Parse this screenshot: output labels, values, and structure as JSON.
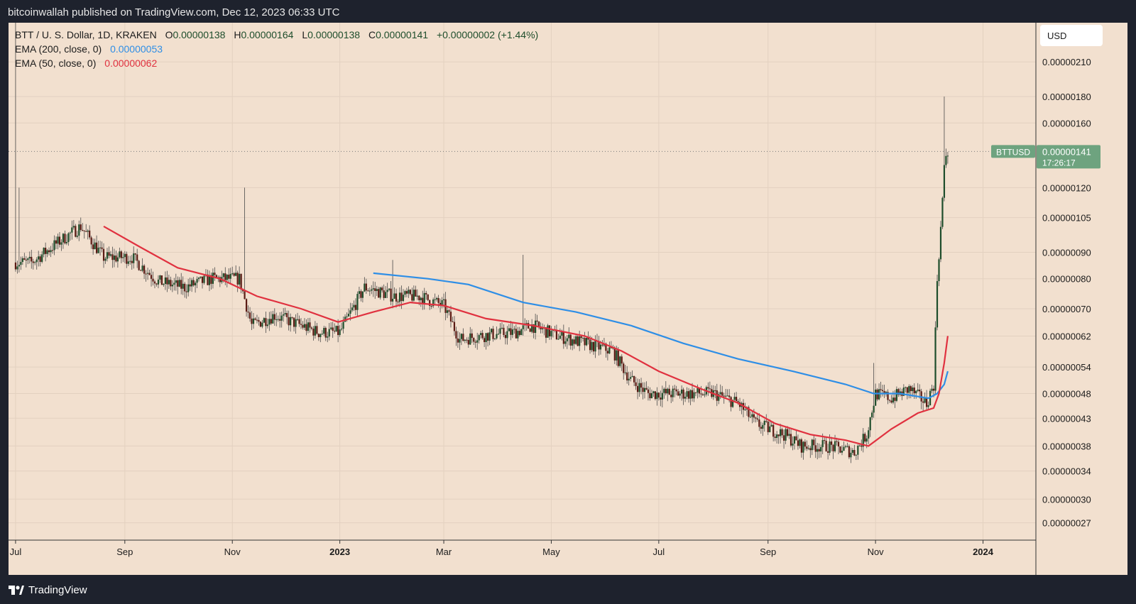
{
  "header": {
    "publisher_line": "bitcoinwallah published on TradingView.com, Dec 12, 2023 06:33 UTC"
  },
  "footer": {
    "brand": "TradingView"
  },
  "colors": {
    "background": "#f2e0cf",
    "frame": "#1e222d",
    "ema200": "#2e8ee6",
    "ema50": "#e0313f",
    "candle_up": "#1e4d2b",
    "candle_down": "#5a1a14",
    "price_tag": "#6ea37f"
  },
  "chart_data": {
    "type": "candlestick",
    "symbol_line": {
      "pair": "BTT / U. S. Dollar, 1D, KRAKEN",
      "o_label": "O",
      "o_value": "0.00000138",
      "h_label": "H",
      "h_value": "0.00000164",
      "l_label": "L",
      "l_value": "0.00000138",
      "c_label": "C",
      "c_value": "0.00000141",
      "change": "+0.00000002 (+1.44%)"
    },
    "indicators": [
      {
        "name": "EMA (200, close, 0)",
        "value": "0.00000053",
        "color": "#2e8ee6"
      },
      {
        "name": "EMA (50, close, 0)",
        "value": "0.00000062",
        "color": "#e0313f"
      }
    ],
    "currency": "USD",
    "scale": "log",
    "ylim": [
      2.5e-07,
      2.5e-06
    ],
    "y_ticks": [
      {
        "label": "0.00000210",
        "value": 2.1e-06
      },
      {
        "label": "0.00000180",
        "value": 1.8e-06
      },
      {
        "label": "0.00000160",
        "value": 1.6e-06
      },
      {
        "label": "0.00000120",
        "value": 1.2e-06
      },
      {
        "label": "0.00000105",
        "value": 1.05e-06
      },
      {
        "label": "0.00000090",
        "value": 9e-07
      },
      {
        "label": "0.00000080",
        "value": 8e-07
      },
      {
        "label": "0.00000070",
        "value": 7e-07
      },
      {
        "label": "0.00000062",
        "value": 6.2e-07
      },
      {
        "label": "0.00000054",
        "value": 5.4e-07
      },
      {
        "label": "0.00000048",
        "value": 4.8e-07
      },
      {
        "label": "0.00000043",
        "value": 4.3e-07
      },
      {
        "label": "0.00000038",
        "value": 3.8e-07
      },
      {
        "label": "0.00000034",
        "value": 3.4e-07
      },
      {
        "label": "0.00000030",
        "value": 3e-07
      },
      {
        "label": "0.00000027",
        "value": 2.7e-07
      }
    ],
    "xlim": [
      "2022-06-27",
      "2024-01-31"
    ],
    "x_ticks": [
      {
        "label": "Jul",
        "date": "2022-07-01",
        "bold": false
      },
      {
        "label": "Sep",
        "date": "2022-09-01",
        "bold": false
      },
      {
        "label": "Nov",
        "date": "2022-11-01",
        "bold": false
      },
      {
        "label": "2023",
        "date": "2023-01-01",
        "bold": true
      },
      {
        "label": "Mar",
        "date": "2023-03-01",
        "bold": false
      },
      {
        "label": "May",
        "date": "2023-05-01",
        "bold": false
      },
      {
        "label": "Jul",
        "date": "2023-07-01",
        "bold": false
      },
      {
        "label": "Sep",
        "date": "2023-09-01",
        "bold": false
      },
      {
        "label": "Nov",
        "date": "2023-11-01",
        "bold": false
      },
      {
        "label": "2024",
        "date": "2024-01-01",
        "bold": true
      }
    ],
    "price_anchors": [
      [
        "2022-07-01",
        8.6e-07
      ],
      [
        "2022-07-10",
        8.6e-07
      ],
      [
        "2022-07-25",
        9.4e-07
      ],
      [
        "2022-08-07",
        1.01e-06
      ],
      [
        "2022-08-20",
        8.8e-07
      ],
      [
        "2022-09-05",
        8.8e-07
      ],
      [
        "2022-09-20",
        7.9e-07
      ],
      [
        "2022-10-05",
        7.7e-07
      ],
      [
        "2022-10-20",
        8e-07
      ],
      [
        "2022-11-05",
        8e-07
      ],
      [
        "2022-11-12",
        6.5e-07
      ],
      [
        "2022-11-25",
        6.8e-07
      ],
      [
        "2022-12-10",
        6.5e-07
      ],
      [
        "2022-12-20",
        6.3e-07
      ],
      [
        "2023-01-01",
        6.3e-07
      ],
      [
        "2023-01-15",
        7.7e-07
      ],
      [
        "2023-02-01",
        7.4e-07
      ],
      [
        "2023-02-15",
        7.4e-07
      ],
      [
        "2023-03-01",
        7.1e-07
      ],
      [
        "2023-03-10",
        6.1e-07
      ],
      [
        "2023-03-20",
        6.2e-07
      ],
      [
        "2023-04-10",
        6.3e-07
      ],
      [
        "2023-04-20",
        6.5e-07
      ],
      [
        "2023-05-05",
        6.2e-07
      ],
      [
        "2023-05-20",
        6e-07
      ],
      [
        "2023-06-05",
        5.8e-07
      ],
      [
        "2023-06-15",
        5.1e-07
      ],
      [
        "2023-06-25",
        4.8e-07
      ],
      [
        "2023-07-10",
        4.8e-07
      ],
      [
        "2023-08-01",
        4.8e-07
      ],
      [
        "2023-08-15",
        4.6e-07
      ],
      [
        "2023-08-25",
        4.2e-07
      ],
      [
        "2023-09-10",
        4e-07
      ],
      [
        "2023-09-20",
        3.8e-07
      ],
      [
        "2023-10-05",
        3.8e-07
      ],
      [
        "2023-10-20",
        3.7e-07
      ],
      [
        "2023-10-27",
        4e-07
      ],
      [
        "2023-11-01",
        4.8e-07
      ],
      [
        "2023-11-10",
        4.7e-07
      ],
      [
        "2023-11-20",
        4.9e-07
      ],
      [
        "2023-11-30",
        4.6e-07
      ],
      [
        "2023-12-04",
        5e-07
      ],
      [
        "2023-12-06",
        8e-07
      ],
      [
        "2023-12-08",
        1e-06
      ],
      [
        "2023-12-10",
        1.3e-06
      ],
      [
        "2023-12-11",
        1.39e-06
      ],
      [
        "2023-12-12",
        1.41e-06
      ]
    ],
    "spikes": [
      {
        "date": "2022-07-01",
        "high": 2.5e-06
      },
      {
        "date": "2022-07-03",
        "high": 1.2e-06
      },
      {
        "date": "2022-11-08",
        "high": 1.2e-06
      },
      {
        "date": "2023-01-31",
        "high": 8.7e-07
      },
      {
        "date": "2023-04-15",
        "high": 8.9e-07
      },
      {
        "date": "2023-10-31",
        "high": 5.5e-07
      },
      {
        "date": "2023-12-10",
        "high": 1.8e-06
      }
    ],
    "series": [
      {
        "name": "EMA (200, close, 0)",
        "color": "#2e8ee6",
        "points": [
          [
            "2023-01-20",
            8.2e-07
          ],
          [
            "2023-02-20",
            8e-07
          ],
          [
            "2023-03-15",
            7.8e-07
          ],
          [
            "2023-04-15",
            7.2e-07
          ],
          [
            "2023-05-15",
            6.9e-07
          ],
          [
            "2023-06-15",
            6.5e-07
          ],
          [
            "2023-07-15",
            6e-07
          ],
          [
            "2023-08-15",
            5.6e-07
          ],
          [
            "2023-09-15",
            5.3e-07
          ],
          [
            "2023-10-15",
            5e-07
          ],
          [
            "2023-10-31",
            4.8e-07
          ],
          [
            "2023-11-15",
            4.8e-07
          ],
          [
            "2023-12-01",
            4.7e-07
          ],
          [
            "2023-12-06",
            4.8e-07
          ],
          [
            "2023-12-10",
            5e-07
          ],
          [
            "2023-12-12",
            5.3e-07
          ]
        ]
      },
      {
        "name": "EMA (50, close, 0)",
        "color": "#e0313f",
        "points": [
          [
            "2022-08-20",
            1.01e-06
          ],
          [
            "2022-09-10",
            9.2e-07
          ],
          [
            "2022-10-01",
            8.4e-07
          ],
          [
            "2022-10-25",
            8e-07
          ],
          [
            "2022-11-15",
            7.4e-07
          ],
          [
            "2022-12-10",
            7e-07
          ],
          [
            "2022-12-31",
            6.6e-07
          ],
          [
            "2023-01-20",
            6.9e-07
          ],
          [
            "2023-02-10",
            7.2e-07
          ],
          [
            "2023-03-01",
            7.1e-07
          ],
          [
            "2023-03-25",
            6.7e-07
          ],
          [
            "2023-04-20",
            6.5e-07
          ],
          [
            "2023-05-20",
            6.2e-07
          ],
          [
            "2023-06-10",
            5.8e-07
          ],
          [
            "2023-07-01",
            5.3e-07
          ],
          [
            "2023-07-25",
            4.9e-07
          ],
          [
            "2023-08-15",
            4.6e-07
          ],
          [
            "2023-09-05",
            4.2e-07
          ],
          [
            "2023-09-25",
            4e-07
          ],
          [
            "2023-10-15",
            3.9e-07
          ],
          [
            "2023-10-28",
            3.8e-07
          ],
          [
            "2023-11-10",
            4.1e-07
          ],
          [
            "2023-11-25",
            4.4e-07
          ],
          [
            "2023-12-04",
            4.5e-07
          ],
          [
            "2023-12-07",
            4.8e-07
          ],
          [
            "2023-12-10",
            5.5e-07
          ],
          [
            "2023-12-12",
            6.2e-07
          ]
        ]
      }
    ],
    "last_price": {
      "symbol": "BTTUSD",
      "value": 1.41e-06,
      "value_label": "0.00000141",
      "countdown": "17:26:17"
    }
  }
}
